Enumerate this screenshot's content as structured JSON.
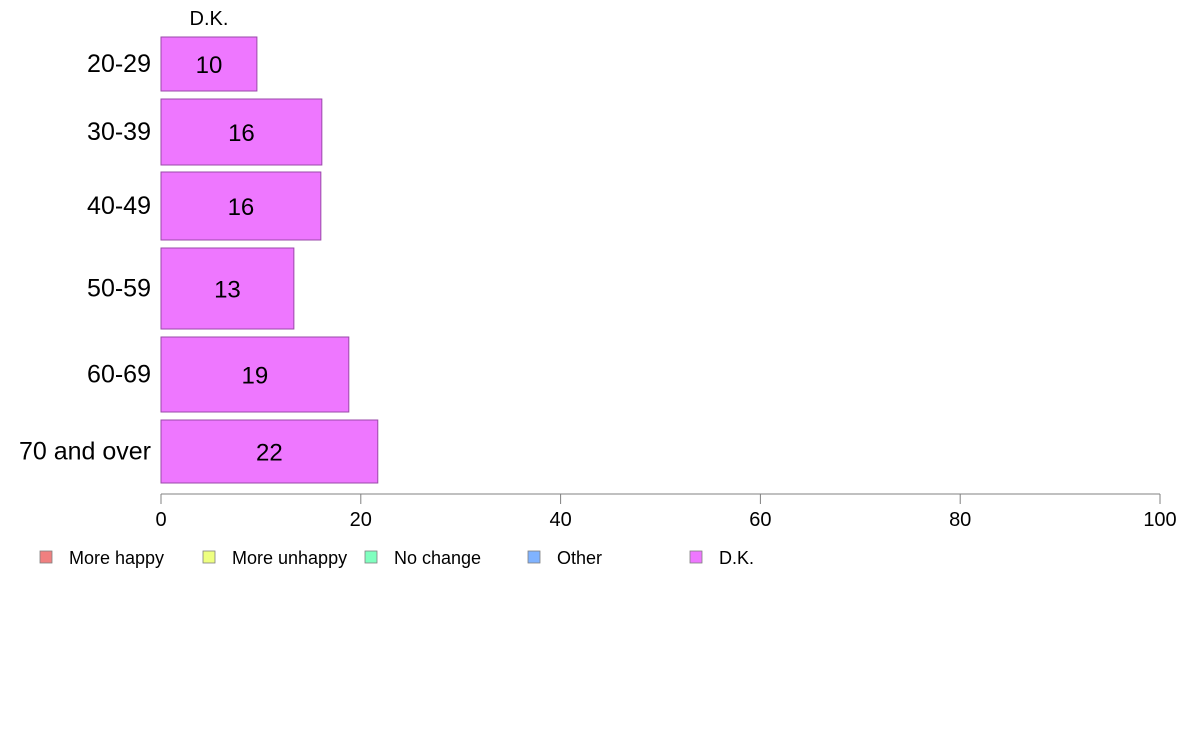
{
  "chart_data": {
    "type": "bar",
    "orientation": "horizontal",
    "categories": [
      "20-29",
      "30-39",
      "40-49",
      "50-59",
      "60-69",
      "70 and over"
    ],
    "series": [
      {
        "name": "D.K.",
        "values": [
          9.6,
          16.1,
          16.0,
          13.3,
          18.8,
          21.7
        ]
      }
    ],
    "data_labels": [
      "10",
      "16",
      "16",
      "13",
      "19",
      "22"
    ],
    "column_header": "D.K.",
    "xlim": [
      0,
      100
    ],
    "xticks": [
      0,
      20,
      40,
      60,
      80,
      100
    ],
    "xtick_labels": [
      "0",
      "20",
      "40",
      "60",
      "80",
      "100"
    ],
    "grid": false,
    "legend": {
      "position": "bottom-left",
      "items": [
        {
          "label": "More happy",
          "color": "#F08080"
        },
        {
          "label": "More unhappy",
          "color": "#EEFF80"
        },
        {
          "label": "No change",
          "color": "#80FFBF"
        },
        {
          "label": "Other",
          "color": "#80B3FF"
        },
        {
          "label": "D.K.",
          "color": "#EE77FF"
        }
      ]
    },
    "bar_color": "#EE77FF",
    "bar_stroke": "#9a4aa8",
    "axis_color": "#808080"
  }
}
